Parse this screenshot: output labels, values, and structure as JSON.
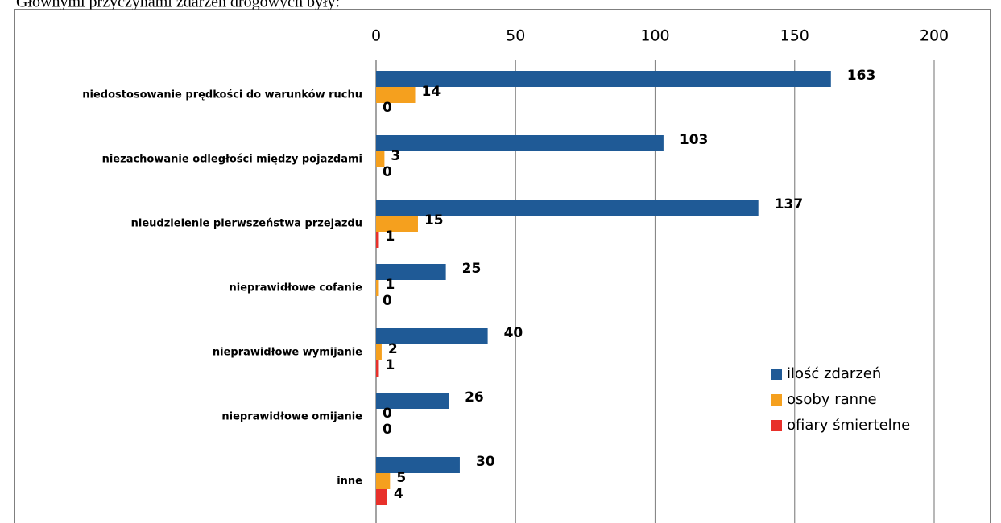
{
  "chart_data": {
    "type": "bar",
    "orientation": "horizontal",
    "title": "Głównymi przyczynami zdarzeń drogowych były:",
    "categories": [
      "niedostosowanie prędkości do warunków ruchu",
      "niezachowanie odległości między pojazdami",
      "nieudzielenie pierwszeństwa przejazdu",
      "nieprawidłowe cofanie",
      "nieprawidłowe wymijanie",
      "nieprawidłowe omijanie",
      "inne"
    ],
    "series": [
      {
        "name": "ilość zdarzeń",
        "color": "#1f5a96",
        "values": [
          163,
          103,
          137,
          25,
          40,
          26,
          30
        ]
      },
      {
        "name": "osoby ranne",
        "color": "#f5a01e",
        "values": [
          14,
          3,
          15,
          1,
          2,
          0,
          5
        ]
      },
      {
        "name": "ofiary śmiertelne",
        "color": "#e8302a",
        "values": [
          0,
          0,
          1,
          0,
          1,
          0,
          4
        ]
      }
    ],
    "xlim": [
      0,
      200
    ],
    "xticks": [
      0,
      50,
      100,
      150,
      200
    ],
    "grid": true,
    "legend": "lower right"
  }
}
